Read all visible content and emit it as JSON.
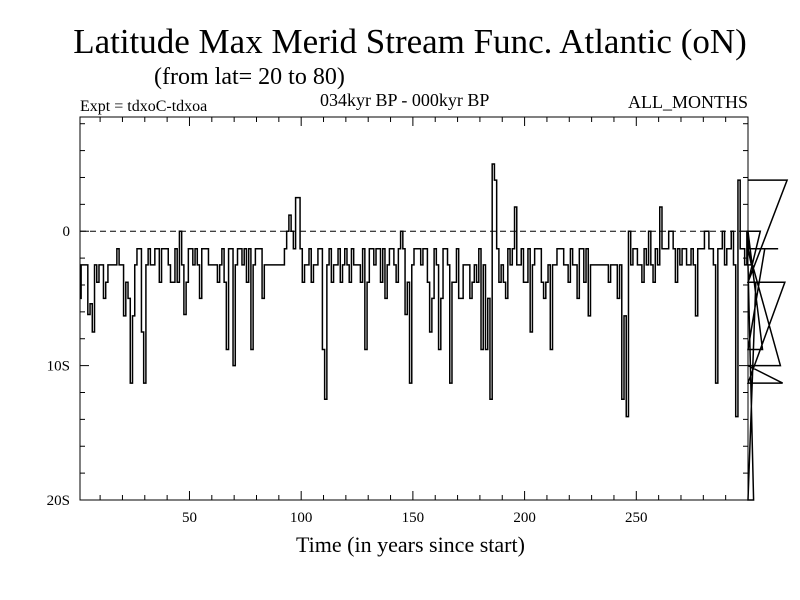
{
  "chart_data": {
    "type": "line",
    "title": "Latitude Max Merid Stream Func. Atlantic (oN)",
    "subtitle": "(from lat= 20 to 80)",
    "annotations": {
      "experiment": "Expt = tdxoC-tdxoa",
      "period": "034kyr BP - 000kyr BP",
      "months": "ALL_MONTHS"
    },
    "xlabel": "Time (in years since start)",
    "ylabel": "",
    "xlim": [
      1,
      300
    ],
    "ylim": [
      -20,
      8.5
    ],
    "x_ticks": [
      {
        "value": 50,
        "label": "50"
      },
      {
        "value": 100,
        "label": "100"
      },
      {
        "value": 150,
        "label": "150"
      },
      {
        "value": 200,
        "label": "200"
      },
      {
        "value": 250,
        "label": "250"
      }
    ],
    "y_ticks": [
      {
        "value": 0,
        "label": "0"
      },
      {
        "value": -10,
        "label": "10S"
      },
      {
        "value": -20,
        "label": "20S"
      }
    ],
    "reference_line": {
      "y": 0,
      "style": "dashed"
    },
    "line_color": "#000000",
    "series": [
      {
        "x_start": 1,
        "x_step": 1,
        "values": [
          -5,
          -2.5,
          -2.5,
          -2.5,
          -6.2,
          -5.4,
          -7.5,
          -2.5,
          -3.8,
          -2.5,
          -2.5,
          -5,
          -3.8,
          -2.5,
          -2.5,
          -2.5,
          -2.5,
          -1.3,
          -2.5,
          -2.5,
          -6.3,
          -3.8,
          -5,
          -11.3,
          -6.3,
          -2.5,
          -1.3,
          -1.3,
          -7.5,
          -11.3,
          -2.5,
          -1.3,
          -2.5,
          -2.5,
          -1.3,
          -1.3,
          -3.8,
          -1.3,
          -1.3,
          -1.3,
          -2.5,
          -3.8,
          -3.8,
          -1.3,
          -3.8,
          0,
          -2.5,
          -6.2,
          -3.8,
          -1.3,
          -1.3,
          -2.5,
          -1.3,
          -2.5,
          -5,
          -1.3,
          -1.3,
          -1.3,
          -2.5,
          -2.5,
          -2.5,
          -2.5,
          -3.8,
          -2.5,
          -1.3,
          -3.8,
          -8.8,
          -1.3,
          -1.3,
          -10,
          -2.5,
          -1.3,
          -1.3,
          -2.5,
          -1.3,
          -3.8,
          -1.3,
          -8.8,
          -2.5,
          -1.3,
          -1.3,
          -1.3,
          -5,
          -2.5,
          -2.5,
          -2.5,
          -2.5,
          -2.5,
          -2.5,
          -2.5,
          -2.5,
          -2.5,
          -1.3,
          0,
          1.2,
          0,
          -1.3,
          2.5,
          2.5,
          -1.3,
          -3.8,
          -2.5,
          -2.5,
          -1.3,
          -3.8,
          -2.5,
          -2.5,
          -1.3,
          -1.3,
          -8.8,
          -12.5,
          -2.5,
          -1.3,
          -3.8,
          -2.5,
          -2.5,
          -1.3,
          -3.8,
          -2.5,
          -1.3,
          -2.5,
          -3.8,
          -1.3,
          -2.5,
          -2.5,
          -2.5,
          -3.8,
          -1.3,
          -8.8,
          -3.8,
          -1.3,
          -1.3,
          -2.5,
          -1.3,
          -1.3,
          -3.8,
          -1.3,
          -5,
          -2.5,
          -1.3,
          -1.3,
          -2.5,
          -3.8,
          -1.3,
          0,
          -1.3,
          -6.2,
          -3.8,
          -11.3,
          -2.5,
          -1.3,
          -1.3,
          -1.3,
          -2.5,
          -1.3,
          -1.3,
          -3.8,
          -7.5,
          -5,
          -1.3,
          -2.5,
          -8.8,
          -5,
          -1.3,
          -1.3,
          -2.5,
          -11.3,
          -3.8,
          -3.8,
          -1.3,
          -5,
          -5,
          -2.5,
          -2.5,
          -2.5,
          -5,
          -3.8,
          -2.5,
          -3.8,
          -1.3,
          -8.8,
          -2.5,
          -8.8,
          -5,
          -12.5,
          5,
          3.8,
          -1.3,
          -3.8,
          -2.5,
          -3.8,
          -5,
          -1.3,
          -2.5,
          -1.3,
          1.8,
          -2.5,
          -2.5,
          -1.3,
          -3.8,
          -3.8,
          -1.3,
          -7.5,
          -2.5,
          -1.3,
          -1.3,
          -1.3,
          -3.8,
          -5,
          -3.8,
          -2.5,
          -8.8,
          -2.5,
          -2.5,
          -1.3,
          -1.3,
          -1.3,
          -2.5,
          -2.5,
          -3.8,
          -1.3,
          -2.5,
          -2.5,
          -5,
          -1.3,
          -1.3,
          -3.8,
          -1.3,
          -6.3,
          -2.5,
          -2.5,
          -2.5,
          -2.5,
          -2.5,
          -2.5,
          -2.5,
          -2.5,
          -3.8,
          -2.5,
          -2.5,
          -2.5,
          -5,
          -2.5,
          -12.5,
          -6.3,
          -13.8,
          0,
          -2.5,
          -1.3,
          -1.3,
          -2.5,
          -2.5,
          -3.8,
          -1.3,
          -2.5,
          0,
          -2.5,
          -3.8,
          -1.3,
          -2.5,
          1.8,
          -1.3,
          -1.3,
          -1.3,
          0,
          0,
          -1.3,
          -3.8,
          -1.3,
          -2.5,
          -1.3,
          -1.3,
          -2.5,
          -2.5,
          -1.3,
          -2.5,
          -6.3,
          -1.3,
          -1.3,
          -1.3,
          0,
          0,
          -1.3,
          -1.3,
          -2.5,
          -11.3,
          -1.3,
          -1.3,
          0,
          -2.5,
          -1.3,
          -1.3,
          0,
          -2.5,
          -13.8,
          3.8,
          -1.3,
          -1.3,
          -2.5,
          0,
          -1.3,
          -2.5,
          -20,
          -3.8,
          -3.8,
          0,
          -8.8,
          -1.3,
          -1.3,
          -1.3,
          -1.3,
          -1.3,
          -1.3,
          -1.3,
          -10,
          -11.3,
          -3.8,
          3.8
        ]
      }
    ]
  }
}
